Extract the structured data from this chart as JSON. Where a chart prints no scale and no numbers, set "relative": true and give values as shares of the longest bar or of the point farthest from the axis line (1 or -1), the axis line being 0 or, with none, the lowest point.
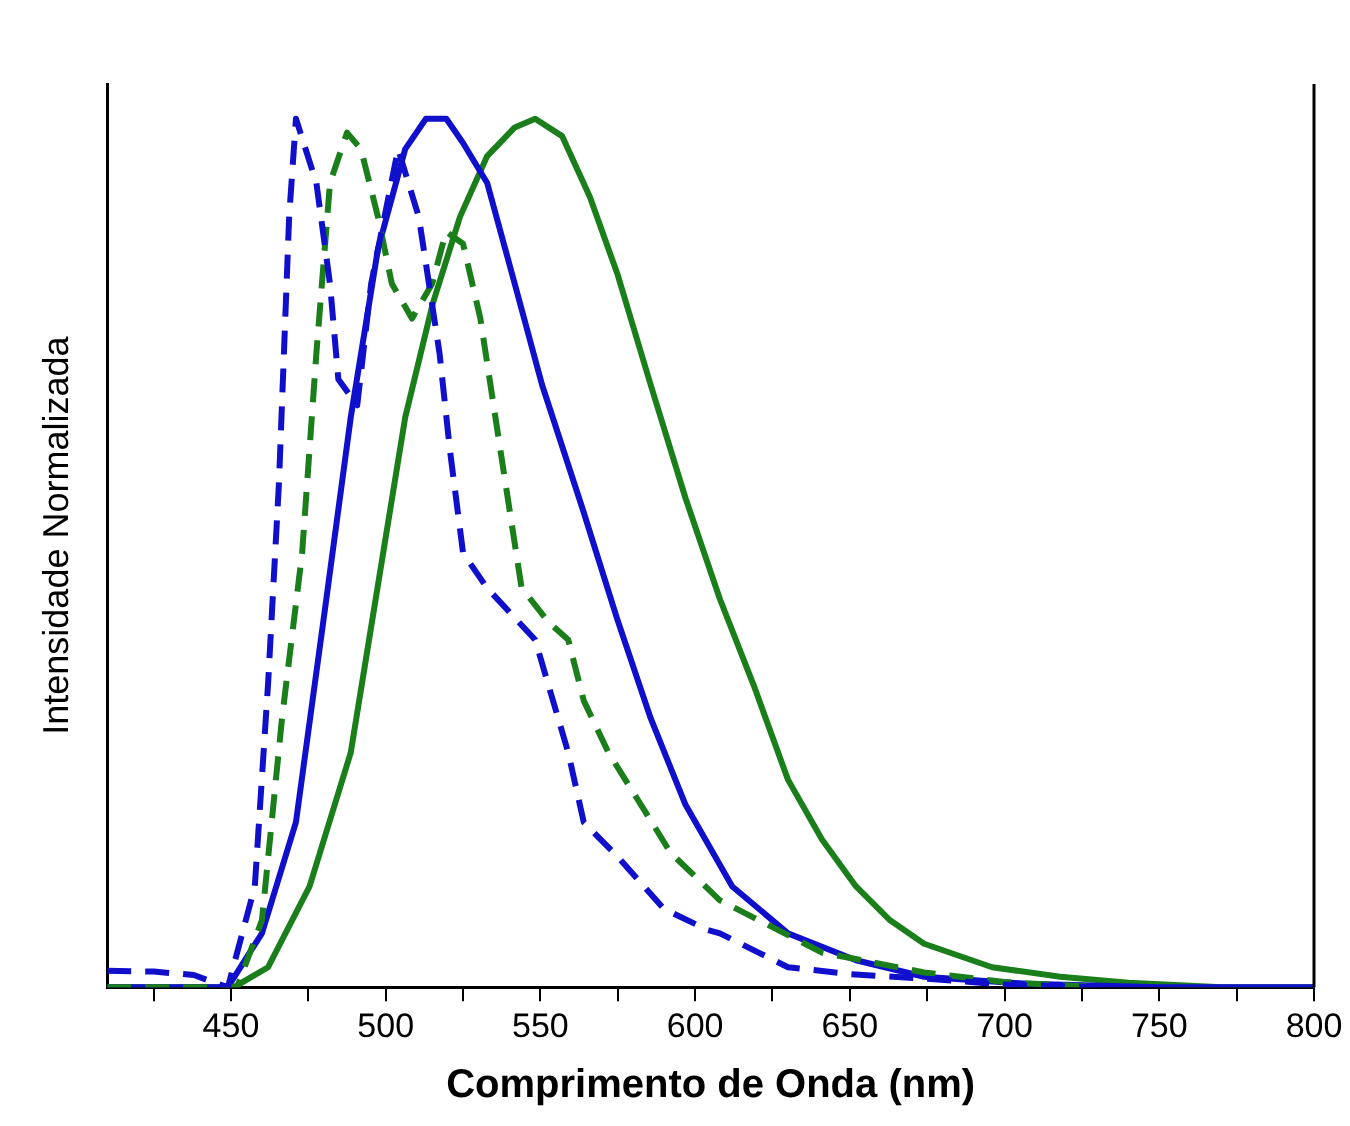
{
  "chart_data": {
    "type": "line",
    "xlabel": "Comprimento de Onda (nm)",
    "ylabel": "Intensidade Normalizada",
    "relative": true,
    "legend": false,
    "grid": false,
    "marker": "none",
    "xlim": [
      410,
      800
    ],
    "xticks": [
      {
        "value": 425,
        "label": null
      },
      450,
      {
        "value": 475,
        "label": null
      },
      500,
      {
        "value": 525,
        "label": null
      },
      550,
      {
        "value": 575,
        "label": null
      },
      600,
      {
        "value": 625,
        "label": null
      },
      650,
      {
        "value": 675,
        "label": null
      },
      700,
      {
        "value": 725,
        "label": null
      },
      750,
      {
        "value": 775,
        "label": null
      },
      800
    ],
    "series": [
      {
        "color": "#1010cc",
        "line_style": "dashed",
        "x": [
          410,
          425,
          438,
          444,
          449,
          457.7,
          462,
          465.5,
          468.8,
          471,
          477.6,
          482,
          484.7,
          490.8,
          495.3,
          504,
          510.7,
          517.4,
          520.7,
          525,
          532.7,
          548.3,
          559,
          564,
          575,
          590,
          604,
          608,
          630,
          650,
          674,
          700,
          730
        ],
        "values": [
          0.019,
          0.018,
          0.014,
          0.006,
          0,
          0.116,
          0.35,
          0.58,
          0.887,
          1.0,
          0.926,
          0.81,
          0.7,
          0.67,
          0.81,
          0.965,
          0.887,
          0.73,
          0.62,
          0.5,
          0.46,
          0.4,
          0.27,
          0.19,
          0.15,
          0.09,
          0.066,
          0.062,
          0.023,
          0.015,
          0.01,
          0.003,
          0
        ]
      },
      {
        "color": "#1a7f1a",
        "line_style": "dashed",
        "x": [
          410,
          440,
          452,
          460,
          466.5,
          473,
          477.6,
          482,
          487.5,
          492,
          497.5,
          502,
          508.5,
          515,
          519.5,
          525,
          530.6,
          537,
          543.9,
          552.7,
          559,
          564,
          572,
          586,
          592,
          608,
          641,
          674,
          700,
          730
        ],
        "values": [
          0,
          0,
          0,
          0.077,
          0.31,
          0.5,
          0.73,
          0.926,
          0.984,
          0.965,
          0.887,
          0.81,
          0.77,
          0.81,
          0.87,
          0.856,
          0.77,
          0.62,
          0.46,
          0.42,
          0.4,
          0.33,
          0.27,
          0.19,
          0.155,
          0.1,
          0.04,
          0.017,
          0.006,
          0
        ]
      },
      {
        "color": "#1010cc",
        "line_style": "solid",
        "x": [
          410,
          449,
          460,
          471,
          479.8,
          488.7,
          497.5,
          506.3,
          513,
          519.6,
          525,
          532.8,
          541.7,
          550.5,
          563.7,
          574.8,
          585.6,
          596.9,
          612,
          630,
          652,
          674,
          707,
          750,
          800
        ],
        "values": [
          0,
          0,
          0.062,
          0.19,
          0.42,
          0.656,
          0.85,
          0.965,
          1.0,
          1.0,
          0.972,
          0.926,
          0.81,
          0.694,
          0.55,
          0.424,
          0.31,
          0.21,
          0.116,
          0.062,
          0.031,
          0.012,
          0.004,
          0,
          0
        ]
      },
      {
        "color": "#1a7f1a",
        "line_style": "solid",
        "x": [
          410,
          451,
          462,
          475.4,
          488.7,
          497.5,
          506.3,
          515.2,
          524,
          532.8,
          541.7,
          548.3,
          557,
          566,
          575,
          585.6,
          596.9,
          608,
          619,
          630,
          641,
          652,
          663,
          674,
          696,
          718,
          740,
          770,
          800
        ],
        "values": [
          0,
          0,
          0.023,
          0.116,
          0.27,
          0.463,
          0.656,
          0.787,
          0.887,
          0.957,
          0.99,
          1.0,
          0.98,
          0.91,
          0.82,
          0.694,
          0.563,
          0.447,
          0.347,
          0.239,
          0.17,
          0.116,
          0.077,
          0.05,
          0.023,
          0.012,
          0.005,
          0,
          0
        ]
      }
    ]
  }
}
